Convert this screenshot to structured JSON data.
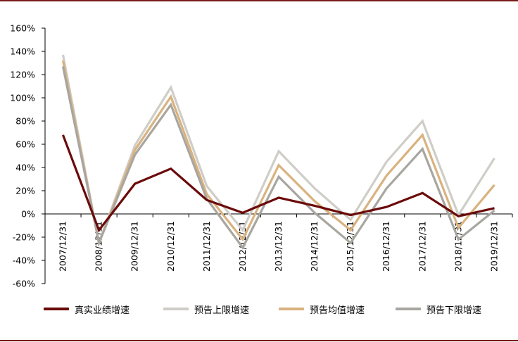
{
  "chart_data": {
    "type": "line",
    "title": "",
    "xlabel": "",
    "ylabel": "",
    "categories": [
      "2007/12/31",
      "2008/12/31",
      "2009/12/31",
      "2010/12/31",
      "2011/12/31",
      "2012/12/31",
      "2013/12/31",
      "2014/12/31",
      "2015/12/31",
      "2016/12/31",
      "2017/12/31",
      "2018/12/31",
      "2019/12/31"
    ],
    "y_ticks": [
      "160%",
      "140%",
      "120%",
      "100%",
      "80%",
      "60%",
      "40%",
      "20%",
      "0%",
      "-20%",
      "-40%",
      "-60%"
    ],
    "ylim": [
      -60,
      160
    ],
    "grid": false,
    "legend_position": "bottom",
    "series": [
      {
        "name": "真实业绩增速",
        "color": "#6b0a0a",
        "values": [
          68,
          -14,
          26,
          39,
          12,
          1,
          14,
          7,
          -1,
          6,
          18,
          -2,
          5
        ]
      },
      {
        "name": "预告上限增速",
        "color": "#cfcdc7",
        "values": [
          137,
          -25,
          59,
          109,
          24,
          -14,
          54,
          22,
          -5,
          45,
          80,
          -1,
          48
        ]
      },
      {
        "name": "预告均值增速",
        "color": "#d9b27f",
        "values": [
          132,
          -25,
          55,
          101,
          17,
          -22,
          42,
          11,
          -14,
          33,
          68,
          -12,
          25
        ]
      },
      {
        "name": "预告下限增速",
        "color": "#a8a6a0",
        "values": [
          127,
          -25,
          51,
          94,
          13,
          -29,
          32,
          1,
          -25,
          22,
          56,
          -22,
          3
        ]
      }
    ]
  }
}
